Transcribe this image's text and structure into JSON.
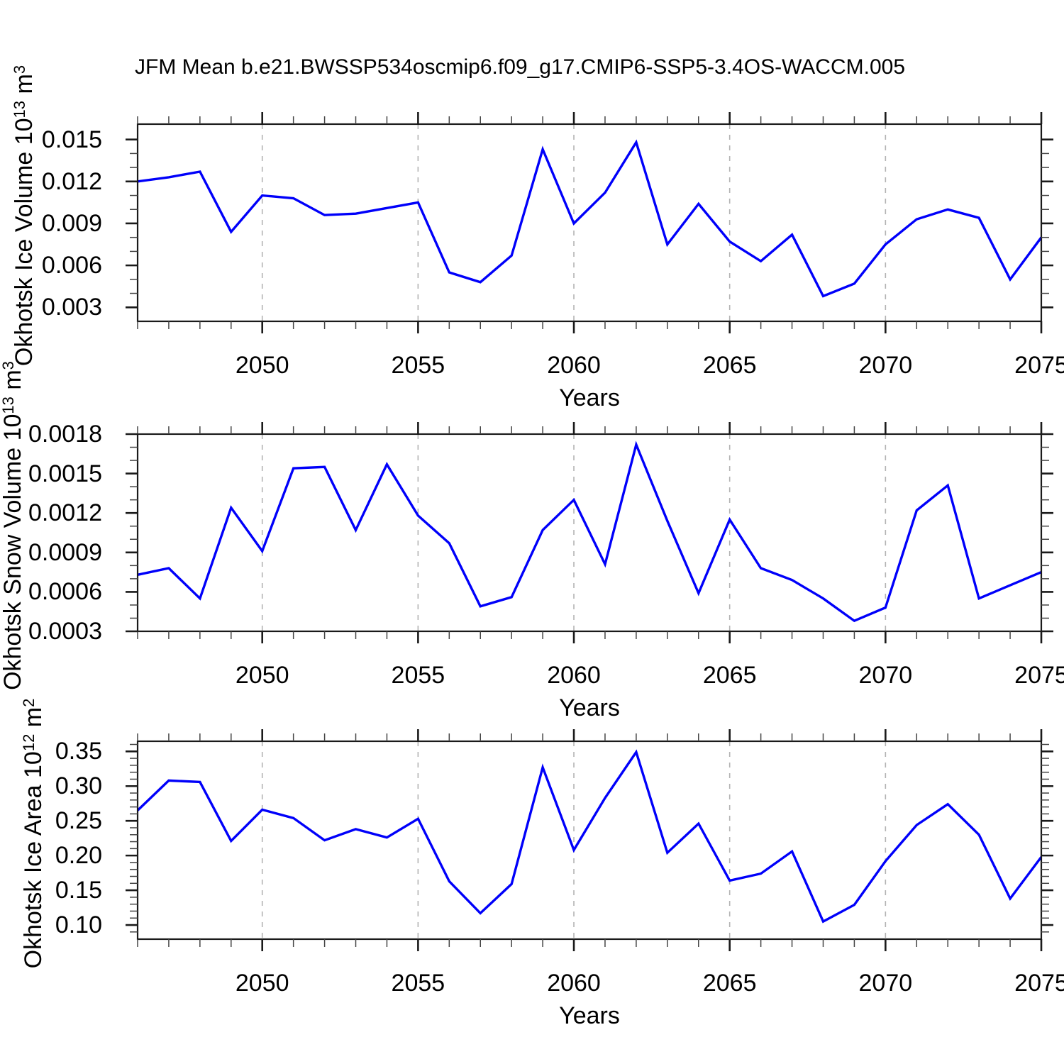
{
  "title": "JFM Mean b.e21.BWSSP534oscmip6.f09_g17.CMIP6-SSP5-3.4OS-WACCM.005",
  "colors": {
    "line": "#0000fa",
    "grid": "#b3b3b3",
    "frame": "#1a1a1a",
    "minor_tick": "#444444",
    "text": "#000000",
    "background": "#ffffff"
  },
  "x_range": [
    2046,
    2075
  ],
  "years": [
    2046,
    2047,
    2048,
    2049,
    2050,
    2051,
    2052,
    2053,
    2054,
    2055,
    2056,
    2057,
    2058,
    2059,
    2060,
    2061,
    2062,
    2063,
    2064,
    2065,
    2066,
    2067,
    2068,
    2069,
    2070,
    2071,
    2072,
    2073,
    2074,
    2075
  ],
  "chart_data": [
    {
      "type": "line",
      "name": "ice-volume",
      "ylabel": "Okhotsk Ice Volume 10^13 m^3",
      "ylabel_segments": [
        {
          "text": "Okhotsk Ice Volume 10"
        },
        {
          "text": "13",
          "sup": true
        },
        {
          "text": " m"
        },
        {
          "text": "3",
          "sup": true
        }
      ],
      "xlabel": "Years",
      "ylim": [
        0.002,
        0.0161
      ],
      "yticks": {
        "values": [
          0.015,
          0.012,
          0.009,
          0.006,
          0.003
        ],
        "labels": [
          "0.015",
          "0.012",
          "0.009",
          "0.006",
          "0.003"
        ]
      },
      "minor_y_step": 0.001,
      "xticks": {
        "values": [
          2050,
          2055,
          2060,
          2065,
          2070,
          2075
        ],
        "labels": [
          "2050",
          "2055",
          "2060",
          "2065",
          "2070",
          "2075"
        ]
      },
      "minor_x_step": 1,
      "grid_x": [
        2050,
        2055,
        2060,
        2065,
        2070
      ],
      "values": [
        0.012,
        0.0123,
        0.0127,
        0.0084,
        0.011,
        0.0108,
        0.0096,
        0.0097,
        0.0101,
        0.0105,
        0.0055,
        0.0048,
        0.0067,
        0.0143,
        0.009,
        0.0112,
        0.0148,
        0.0075,
        0.0104,
        0.0077,
        0.0063,
        0.0082,
        0.0038,
        0.0047,
        0.0075,
        0.0093,
        0.01,
        0.0094,
        0.005,
        0.008
      ]
    },
    {
      "type": "line",
      "name": "snow-volume",
      "ylabel": "Okhotsk Snow Volume 10^13 m^3",
      "ylabel_segments": [
        {
          "text": "Okhotsk Snow Volume 10"
        },
        {
          "text": "13",
          "sup": true
        },
        {
          "text": " m"
        },
        {
          "text": "3",
          "sup": true
        }
      ],
      "xlabel": "Years",
      "ylim": [
        0.0003,
        0.0018
      ],
      "yticks": {
        "values": [
          0.0018,
          0.0015,
          0.0012,
          0.0009,
          0.0006,
          0.0003
        ],
        "labels": [
          "0.0018",
          "0.0015",
          "0.0012",
          "0.0009",
          "0.0006",
          "0.0003"
        ]
      },
      "minor_y_step": 0.0001,
      "xticks": {
        "values": [
          2050,
          2055,
          2060,
          2065,
          2070,
          2075
        ],
        "labels": [
          "2050",
          "2055",
          "2060",
          "2065",
          "2070",
          "2075"
        ]
      },
      "minor_x_step": 1,
      "grid_x": [
        2050,
        2055,
        2060,
        2065,
        2070
      ],
      "values": [
        0.00073,
        0.00078,
        0.00055,
        0.00124,
        0.00091,
        0.00154,
        0.00155,
        0.00107,
        0.00157,
        0.00118,
        0.00097,
        0.00049,
        0.00056,
        0.00107,
        0.0013,
        0.00081,
        0.00172,
        0.00114,
        0.00059,
        0.00115,
        0.00078,
        0.00069,
        0.00055,
        0.00038,
        0.00048,
        0.00122,
        0.00141,
        0.00055,
        0.00065,
        0.00075
      ]
    },
    {
      "type": "line",
      "name": "ice-area",
      "ylabel": "Okhotsk Ice Area 10^12 m^2",
      "ylabel_segments": [
        {
          "text": "Okhotsk Ice Area 10"
        },
        {
          "text": "12",
          "sup": true
        },
        {
          "text": " m"
        },
        {
          "text": "2",
          "sup": true
        }
      ],
      "xlabel": "Years",
      "ylim": [
        0.0796,
        0.3646
      ],
      "yticks": {
        "values": [
          0.35,
          0.3,
          0.25,
          0.2,
          0.15,
          0.1
        ],
        "labels": [
          "0.35",
          "0.30",
          "0.25",
          "0.20",
          "0.15",
          "0.10"
        ]
      },
      "minor_y_step": 0.01,
      "xticks": {
        "values": [
          2050,
          2055,
          2060,
          2065,
          2070,
          2075
        ],
        "labels": [
          "2050",
          "2055",
          "2060",
          "2065",
          "2070",
          "2075"
        ]
      },
      "minor_x_step": 1,
      "grid_x": [
        2050,
        2055,
        2060,
        2065,
        2070
      ],
      "values": [
        0.265,
        0.308,
        0.306,
        0.221,
        0.266,
        0.254,
        0.222,
        0.238,
        0.226,
        0.253,
        0.163,
        0.117,
        0.159,
        0.327,
        0.208,
        0.283,
        0.349,
        0.204,
        0.246,
        0.164,
        0.174,
        0.206,
        0.105,
        0.129,
        0.192,
        0.244,
        0.274,
        0.23,
        0.138,
        0.198
      ]
    }
  ]
}
